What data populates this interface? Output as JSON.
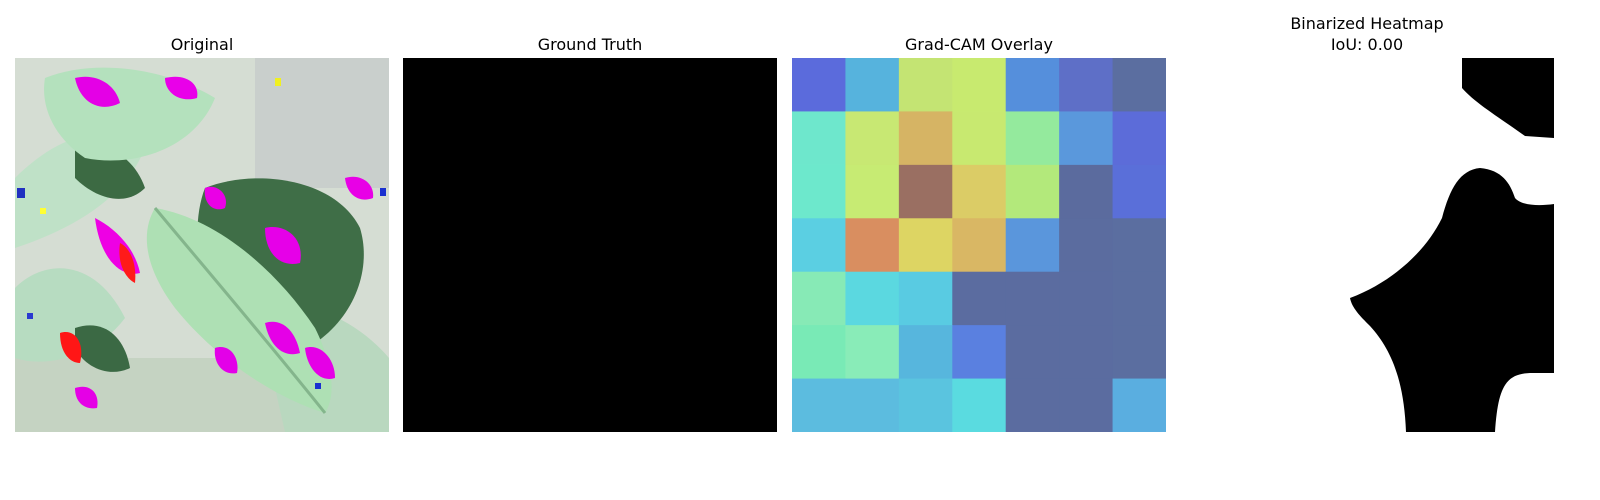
{
  "panels": {
    "original": {
      "title": "Original"
    },
    "ground_truth": {
      "title": "Ground Truth"
    },
    "overlay": {
      "title": "Grad-CAM Overlay",
      "grid_colors": [
        [
          "#5b6bdc",
          "#56b3dd",
          "#c4e473",
          "#c8ea6f",
          "#558fdc",
          "#5e6fc7",
          "#5b6ea0"
        ],
        [
          "#6ee7cc",
          "#c8e873",
          "#d6b464",
          "#c8e970",
          "#94ea9d",
          "#5a98dc",
          "#5c6cd9"
        ],
        [
          "#6de8cc",
          "#c7eb73",
          "#9a6f62",
          "#dbcc66",
          "#b3e97b",
          "#5b6b9e",
          "#5a6fd9"
        ],
        [
          "#5bcfe2",
          "#d98e60",
          "#ddd563",
          "#d9b764",
          "#5a96dc",
          "#5b6c9f",
          "#5b6ea0"
        ],
        [
          "#87eab6",
          "#5bd8e0",
          "#59cbe2",
          "#5b6ca0",
          "#5b6ca0",
          "#5b6ca0",
          "#5b6ea0"
        ],
        [
          "#79eab6",
          "#89ecb8",
          "#57b6dd",
          "#5a80e0",
          "#5b6ca0",
          "#5b6ca0",
          "#5b6ea0"
        ],
        [
          "#5cbcdf",
          "#5cbcdf",
          "#5ac4df",
          "#5adbe0",
          "#5b6ca0",
          "#5b6ca0",
          "#5aaee0"
        ]
      ]
    },
    "binarized": {
      "title_line1": "Binarized Heatmap",
      "title_line2": "IoU: 0.00"
    }
  }
}
